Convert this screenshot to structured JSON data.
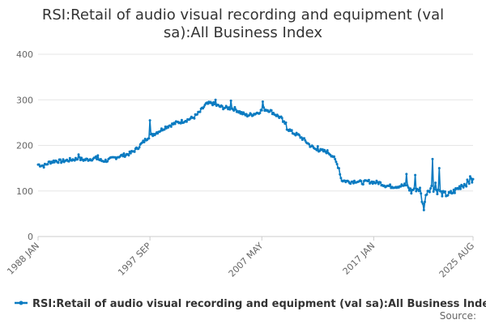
{
  "chart_data": {
    "type": "line",
    "title_line1": "RSI:Retail of audio visual recording and equipment (val",
    "title_line2": "sa):All Business Index",
    "xlabel": "",
    "ylabel": "",
    "ylim": [
      0,
      400
    ],
    "y_ticks": [
      "0",
      "100",
      "200",
      "300",
      "400"
    ],
    "x_tick_labels": [
      "1988 JAN",
      "1997 SEP",
      "2007 MAY",
      "2017 JAN",
      "2025 AUG"
    ],
    "x_tick_years": [
      1988.0,
      1997.667,
      2007.333,
      2017.0,
      2025.583
    ],
    "x_range": [
      1988.0,
      2025.583
    ],
    "grid": true,
    "legend_position": "bottom",
    "series": [
      {
        "name": "RSI:Retail of audio visual recording and equipment (val sa):All Business Index",
        "color": "#0b7bc1",
        "anchors": [
          [
            1988.0,
            158
          ],
          [
            1988.5,
            155
          ],
          [
            1989.0,
            163
          ],
          [
            1989.5,
            166
          ],
          [
            1990.0,
            165
          ],
          [
            1990.5,
            167
          ],
          [
            1991.0,
            169
          ],
          [
            1991.5,
            171
          ],
          [
            1992.0,
            168
          ],
          [
            1992.5,
            170
          ],
          [
            1993.0,
            172
          ],
          [
            1993.5,
            166
          ],
          [
            1994.0,
            167
          ],
          [
            1994.5,
            172
          ],
          [
            1995.0,
            176
          ],
          [
            1995.5,
            179
          ],
          [
            1996.0,
            183
          ],
          [
            1996.5,
            192
          ],
          [
            1997.0,
            205
          ],
          [
            1997.5,
            218
          ],
          [
            1998.0,
            225
          ],
          [
            1998.5,
            232
          ],
          [
            1999.0,
            240
          ],
          [
            1999.5,
            245
          ],
          [
            2000.0,
            250
          ],
          [
            2000.5,
            253
          ],
          [
            2001.0,
            257
          ],
          [
            2001.5,
            262
          ],
          [
            2002.0,
            274
          ],
          [
            2002.5,
            290
          ],
          [
            2003.0,
            293
          ],
          [
            2003.5,
            287
          ],
          [
            2004.0,
            283
          ],
          [
            2004.5,
            282
          ],
          [
            2005.0,
            280
          ],
          [
            2005.5,
            272
          ],
          [
            2006.0,
            266
          ],
          [
            2006.5,
            268
          ],
          [
            2007.0,
            272
          ],
          [
            2007.5,
            280
          ],
          [
            2008.0,
            277
          ],
          [
            2008.5,
            268
          ],
          [
            2009.0,
            260
          ],
          [
            2009.5,
            238
          ],
          [
            2010.0,
            228
          ],
          [
            2010.5,
            222
          ],
          [
            2011.0,
            212
          ],
          [
            2011.5,
            200
          ],
          [
            2012.0,
            191
          ],
          [
            2012.5,
            188
          ],
          [
            2013.0,
            186
          ],
          [
            2013.5,
            176
          ],
          [
            2014.0,
            150
          ],
          [
            2014.2,
            124
          ],
          [
            2014.5,
            122
          ],
          [
            2015.0,
            120
          ],
          [
            2015.5,
            122
          ],
          [
            2016.0,
            118
          ],
          [
            2016.5,
            121
          ],
          [
            2017.0,
            119
          ],
          [
            2017.5,
            118
          ],
          [
            2018.0,
            112
          ],
          [
            2018.5,
            110
          ],
          [
            2019.0,
            110
          ],
          [
            2019.5,
            112
          ],
          [
            2020.0,
            108
          ],
          [
            2020.25,
            98
          ],
          [
            2020.5,
            106
          ],
          [
            2021.0,
            103
          ],
          [
            2021.3,
            62
          ],
          [
            2021.6,
            100
          ],
          [
            2022.0,
            108
          ],
          [
            2022.5,
            100
          ],
          [
            2023.0,
            93
          ],
          [
            2023.5,
            92
          ],
          [
            2024.0,
            100
          ],
          [
            2024.5,
            110
          ],
          [
            2025.0,
            117
          ],
          [
            2025.583,
            123
          ]
        ],
        "spikes": [
          [
            1991.5,
            180
          ],
          [
            1993.2,
            178
          ],
          [
            1997.7,
            255
          ],
          [
            2001.6,
            268
          ],
          [
            2003.3,
            300
          ],
          [
            2004.7,
            298
          ],
          [
            2007.4,
            296
          ],
          [
            2009.4,
            250
          ],
          [
            2012.2,
            198
          ],
          [
            2019.8,
            137
          ],
          [
            2020.6,
            135
          ],
          [
            2021.3,
            58
          ],
          [
            2022.1,
            170
          ],
          [
            2022.3,
            118
          ],
          [
            2022.7,
            150
          ],
          [
            2024.6,
            113
          ],
          [
            2025.3,
            132
          ]
        ]
      }
    ]
  },
  "source_label": "Source:"
}
